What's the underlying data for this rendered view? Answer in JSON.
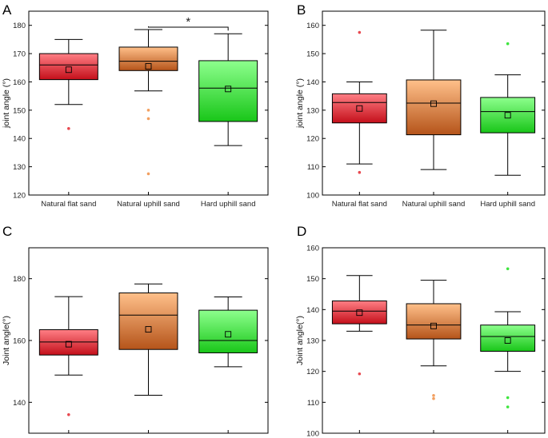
{
  "colors": {
    "red_top": "#ff7f85",
    "red_bottom": "#c40f1a",
    "red_point": "#e8484f",
    "orange_top": "#ffc08a",
    "orange_bottom": "#b5541a",
    "orange_point": "#f2a061",
    "green_top": "#8dff8d",
    "green_bottom": "#19c619",
    "green_point": "#3fe53f",
    "axis": "#000000"
  },
  "chart_data": [
    {
      "type": "box",
      "panel": "A",
      "ylabel": "joint angle (°)",
      "ylim": [
        120,
        185
      ],
      "yticks": [
        120,
        130,
        140,
        150,
        160,
        170,
        180
      ],
      "categories": [
        "Natural flat sand",
        "Natural uphill sand",
        "Hard uphill sand"
      ],
      "boxes": [
        {
          "q1": 160.8,
          "median": 166.0,
          "q3": 170.0,
          "mean": 164.3,
          "whisker_low": 152.0,
          "whisker_high": 175.0,
          "outliers": [
            143.5
          ]
        },
        {
          "q1": 164.0,
          "median": 167.3,
          "q3": 172.3,
          "mean": 165.5,
          "whisker_low": 156.8,
          "whisker_high": 178.5,
          "outliers": [
            150.0,
            147.0,
            127.5
          ]
        },
        {
          "q1": 146.0,
          "median": 157.8,
          "q3": 167.5,
          "mean": 157.5,
          "whisker_low": 137.5,
          "whisker_high": 177.0,
          "outliers": []
        }
      ],
      "significance": {
        "from": 1,
        "to": 2,
        "label": "*"
      }
    },
    {
      "type": "box",
      "panel": "B",
      "ylabel": "joint angle (°)",
      "ylim": [
        100,
        165
      ],
      "yticks": [
        100,
        110,
        120,
        130,
        140,
        150,
        160
      ],
      "categories": [
        "Natural flat sand",
        "Natural uphill sand",
        "Hard uphill sand"
      ],
      "boxes": [
        {
          "q1": 125.5,
          "median": 132.7,
          "q3": 135.8,
          "mean": 130.6,
          "whisker_low": 111.0,
          "whisker_high": 140.0,
          "outliers": [
            157.5,
            108.0
          ]
        },
        {
          "q1": 121.3,
          "median": 132.5,
          "q3": 140.7,
          "mean": 132.3,
          "whisker_low": 109.0,
          "whisker_high": 158.3,
          "outliers": []
        },
        {
          "q1": 122.0,
          "median": 129.5,
          "q3": 134.5,
          "mean": 128.2,
          "whisker_low": 107.0,
          "whisker_high": 142.5,
          "outliers": [
            153.5
          ]
        }
      ]
    },
    {
      "type": "box",
      "panel": "C",
      "ylabel": "Joint angle(°)",
      "ylim": [
        130,
        190
      ],
      "yticks": [
        140,
        160,
        180
      ],
      "categories": [
        "Natural flat sand",
        "Natural uphill sand",
        "Hard uphill sand"
      ],
      "boxes": [
        {
          "q1": 155.3,
          "median": 159.5,
          "q3": 163.5,
          "mean": 158.8,
          "whisker_low": 148.8,
          "whisker_high": 174.2,
          "outliers": [
            136.0
          ]
        },
        {
          "q1": 157.1,
          "median": 168.2,
          "q3": 175.4,
          "mean": 163.6,
          "whisker_low": 142.3,
          "whisker_high": 178.3,
          "outliers": []
        },
        {
          "q1": 156.0,
          "median": 160.0,
          "q3": 169.8,
          "mean": 162.0,
          "whisker_low": 151.5,
          "whisker_high": 174.1,
          "outliers": []
        }
      ]
    },
    {
      "type": "box",
      "panel": "D",
      "ylabel": "Joint angle(°)",
      "ylim": [
        100,
        160
      ],
      "yticks": [
        100,
        110,
        120,
        130,
        140,
        150,
        160
      ],
      "categories": [
        "Natural flat sand",
        "Natural uphill sand",
        "Hard uphill sand"
      ],
      "boxes": [
        {
          "q1": 135.4,
          "median": 139.5,
          "q3": 142.8,
          "mean": 139.0,
          "whisker_low": 133.0,
          "whisker_high": 151.0,
          "outliers": [
            119.2
          ]
        },
        {
          "q1": 130.5,
          "median": 135.0,
          "q3": 141.9,
          "mean": 134.7,
          "whisker_low": 121.8,
          "whisker_high": 149.5,
          "outliers": [
            112.2,
            111.2
          ]
        },
        {
          "q1": 126.5,
          "median": 131.3,
          "q3": 135.0,
          "mean": 130.0,
          "whisker_low": 120.0,
          "whisker_high": 139.3,
          "outliers": [
            153.2,
            111.5,
            108.5
          ]
        }
      ]
    }
  ]
}
